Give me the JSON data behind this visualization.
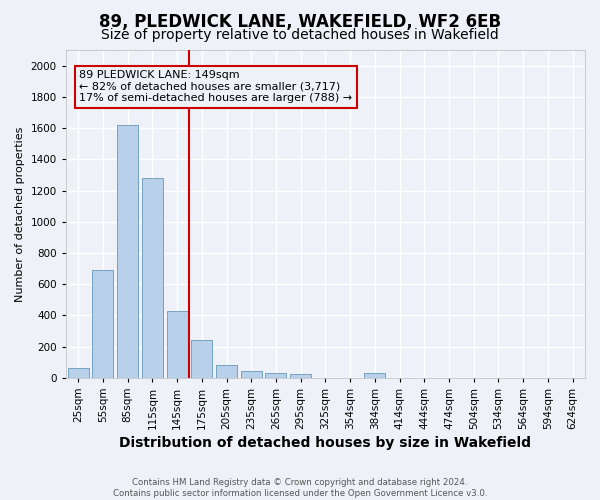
{
  "title": "89, PLEDWICK LANE, WAKEFIELD, WF2 6EB",
  "subtitle": "Size of property relative to detached houses in Wakefield",
  "xlabel": "Distribution of detached houses by size in Wakefield",
  "ylabel": "Number of detached properties",
  "categories": [
    "25sqm",
    "55sqm",
    "85sqm",
    "115sqm",
    "145sqm",
    "175sqm",
    "205sqm",
    "235sqm",
    "265sqm",
    "295sqm",
    "325sqm",
    "354sqm",
    "384sqm",
    "414sqm",
    "444sqm",
    "474sqm",
    "504sqm",
    "534sqm",
    "564sqm",
    "594sqm",
    "624sqm"
  ],
  "values": [
    65,
    690,
    1620,
    1280,
    430,
    245,
    80,
    45,
    30,
    25,
    0,
    0,
    30,
    0,
    0,
    0,
    0,
    0,
    0,
    0,
    0
  ],
  "bar_color": "#B8D0EA",
  "bar_edge_color": "#6699BB",
  "highlight_color": "#CC0000",
  "property_bar_index": 4,
  "annotation_line1": "89 PLEDWICK LANE: 149sqm",
  "annotation_line2": "← 82% of detached houses are smaller (3,717)",
  "annotation_line3": "17% of semi-detached houses are larger (788) →",
  "ylim": [
    0,
    2100
  ],
  "yticks": [
    0,
    200,
    400,
    600,
    800,
    1000,
    1200,
    1400,
    1600,
    1800,
    2000
  ],
  "background_color": "#EEF2F8",
  "grid_color": "#FFFFFF",
  "title_fontsize": 12,
  "subtitle_fontsize": 10,
  "ylabel_fontsize": 8,
  "xlabel_fontsize": 10,
  "tick_fontsize": 7.5,
  "ann_fontsize": 8,
  "footer1": "Contains HM Land Registry data © Crown copyright and database right 2024.",
  "footer2": "Contains public sector information licensed under the Open Government Licence v3.0."
}
